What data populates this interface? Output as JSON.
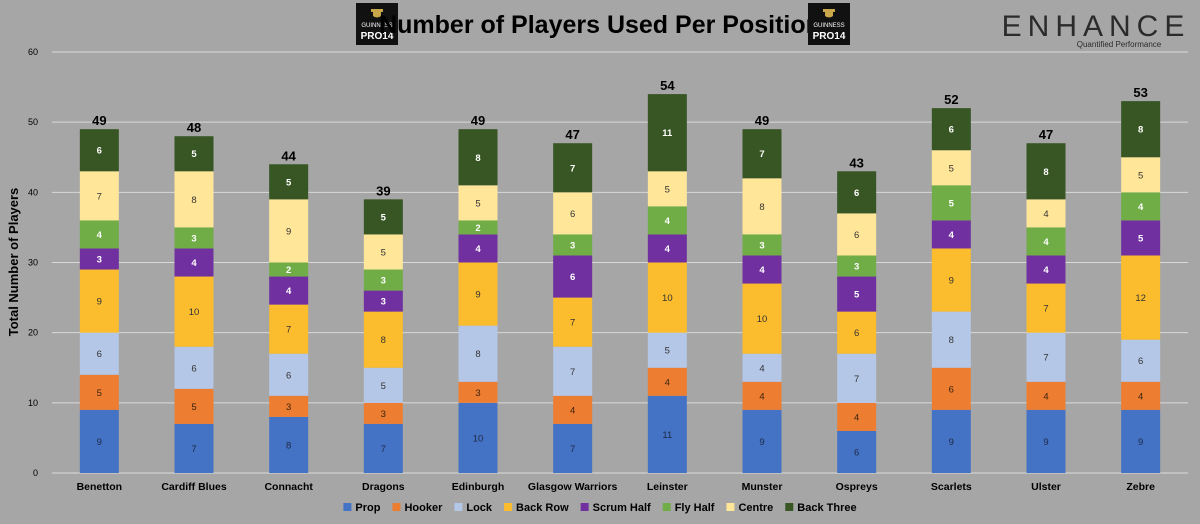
{
  "chart_data": {
    "type": "bar",
    "stacked": true,
    "title": "Number of Players Used Per Position",
    "xlabel": "",
    "ylabel": "Total Number of Players",
    "ylim": [
      0,
      60
    ],
    "yticks": [
      0,
      10,
      20,
      30,
      40,
      50,
      60
    ],
    "grid": true,
    "legend_position": "bottom",
    "categories": [
      "Benetton",
      "Cardiff Blues",
      "Connacht",
      "Dragons",
      "Edinburgh",
      "Glasgow Warriors",
      "Leinster",
      "Munster",
      "Ospreys",
      "Scarlets",
      "Ulster",
      "Zebre"
    ],
    "totals": [
      49,
      48,
      44,
      39,
      49,
      47,
      54,
      49,
      43,
      52,
      47,
      53
    ],
    "series": [
      {
        "name": "Prop",
        "color": "#4472c4",
        "values": [
          9,
          7,
          8,
          7,
          10,
          7,
          11,
          9,
          6,
          9,
          9,
          9
        ]
      },
      {
        "name": "Hooker",
        "color": "#ed7d31",
        "values": [
          5,
          5,
          3,
          3,
          3,
          4,
          4,
          4,
          4,
          6,
          4,
          4
        ]
      },
      {
        "name": "Lock",
        "color": "#b4c7e7",
        "values": [
          6,
          6,
          6,
          5,
          8,
          7,
          5,
          4,
          7,
          8,
          7,
          6
        ]
      },
      {
        "name": "Back Row",
        "color": "#fbbc2d",
        "values": [
          9,
          10,
          7,
          8,
          9,
          7,
          10,
          10,
          6,
          9,
          7,
          12
        ]
      },
      {
        "name": "Scrum Half",
        "color": "#7030a0",
        "values": [
          3,
          4,
          4,
          3,
          4,
          6,
          4,
          4,
          5,
          4,
          4,
          5
        ]
      },
      {
        "name": "Fly Half",
        "color": "#70ad47",
        "values": [
          4,
          3,
          2,
          3,
          2,
          3,
          4,
          3,
          3,
          5,
          4,
          4
        ]
      },
      {
        "name": "Centre",
        "color": "#ffe699",
        "values": [
          7,
          8,
          9,
          5,
          5,
          6,
          5,
          8,
          6,
          5,
          4,
          5
        ]
      },
      {
        "name": "Back Three",
        "color": "#375623",
        "values": [
          6,
          5,
          5,
          5,
          8,
          7,
          11,
          7,
          6,
          6,
          8,
          8
        ]
      }
    ]
  },
  "logo_left": {
    "line1": "GUINNESS",
    "line2": "PRO14"
  },
  "logo_right": {
    "line1": "GUINNESS",
    "line2": "PRO14"
  },
  "brand": {
    "name": "ENHANCE",
    "tagline": "Quantified Performance"
  }
}
